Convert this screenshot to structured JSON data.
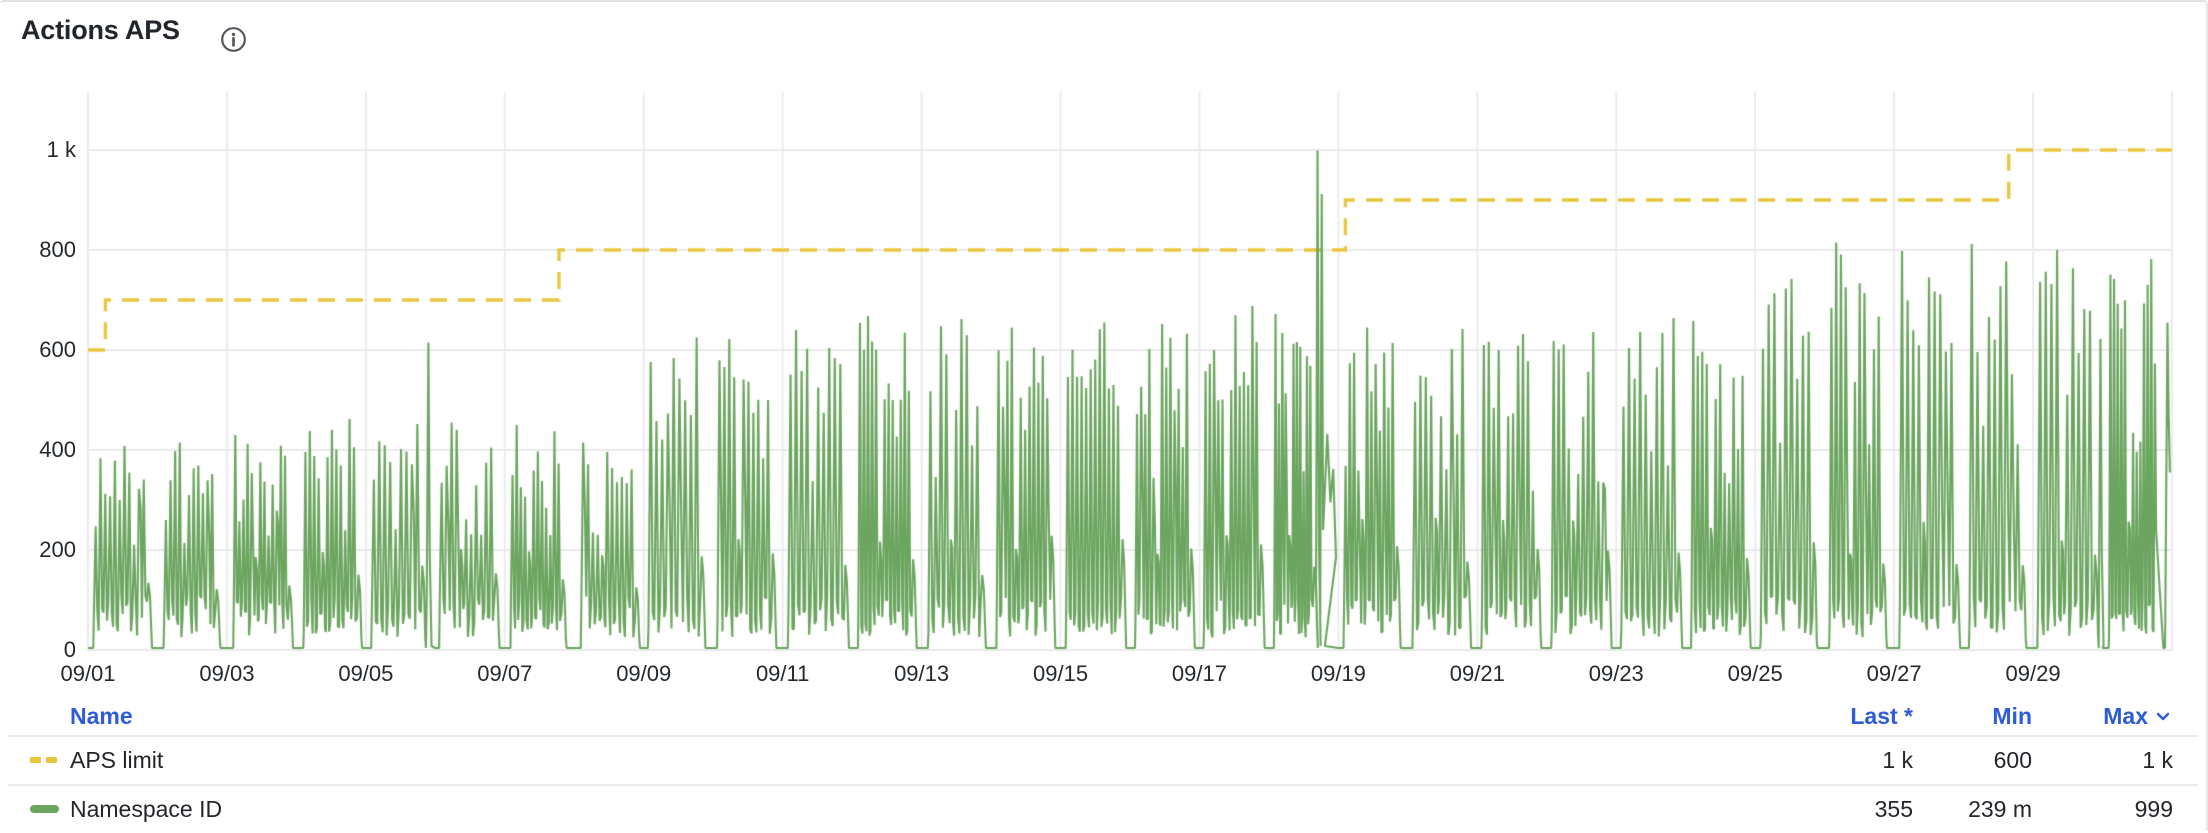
{
  "panel": {
    "title": "Actions APS",
    "info_icon": "info-circle-icon"
  },
  "colors": {
    "green": "#6ba55f",
    "yellow": "#eac63e",
    "blue": "#2e5bd8",
    "grid": "#e9eaec",
    "axis_text": "#24292e",
    "text": "#22262b"
  },
  "chart_data": {
    "type": "line",
    "title": "Actions APS",
    "grid": true,
    "legend_position": "bottom-table",
    "x_axis": {
      "unit": "date",
      "start": "09/01",
      "end": "10/01",
      "total_days": 30,
      "tick_interval_days": 2,
      "tick_labels": [
        "09/01",
        "09/03",
        "09/05",
        "09/07",
        "09/09",
        "09/11",
        "09/13",
        "09/15",
        "09/17",
        "09/19",
        "09/21",
        "09/23",
        "09/25",
        "09/27",
        "09/29"
      ]
    },
    "y_axis": {
      "min": 0,
      "max": 1050,
      "tick_values": [
        0,
        200,
        400,
        600,
        800,
        1000
      ],
      "tick_labels": [
        "0",
        "200",
        "400",
        "600",
        "800",
        "1 k"
      ]
    },
    "series": [
      {
        "name": "APS limit",
        "style": "dashed-step",
        "color": "#eac63e",
        "points": [
          {
            "t": 0,
            "value": 600
          },
          {
            "t": 0.25,
            "value": 700
          },
          {
            "t": 6.78,
            "value": 800
          },
          {
            "t": 18.1,
            "value": 900
          },
          {
            "t": 27.65,
            "value": 1000
          },
          {
            "t": 30,
            "value": 1000
          }
        ]
      },
      {
        "name": "Namespace ID",
        "style": "spiky-daily-clusters",
        "color": "#6ba55f",
        "daily_peaks": [
          408,
          415,
          430,
          462,
          452,
          455,
          450,
          415,
          625,
          622,
          640,
          668,
          662,
          645,
          655,
          652,
          688,
          672,
          645,
          642,
          632,
          636,
          664,
          658,
          742,
          815,
          798,
          812,
          800,
          782
        ],
        "special_spikes": [
          {
            "t": 4.9,
            "value": 615
          },
          {
            "t": 17.7,
            "value": 999
          },
          {
            "t": 17.76,
            "value": 912
          },
          {
            "t": 28.97,
            "value": 622
          }
        ],
        "post_spike_bumps": [
          [
            17.84,
            432
          ],
          [
            17.885,
            295
          ],
          [
            17.925,
            362
          ],
          [
            17.965,
            185
          ]
        ],
        "cluster_end_overrides": {
          "4": 4.78,
          "17": 17.62,
          "28": 28.86,
          "29": 29.78
        },
        "tail_points": [
          [
            29.875,
            4
          ],
          [
            29.9,
            4
          ],
          [
            29.935,
            655
          ],
          [
            29.952,
            470
          ],
          [
            29.97,
            355
          ]
        ],
        "pattern": {
          "base_value": 4,
          "gap_start_range": [
            0.05,
            0.1
          ],
          "cluster_end_range": [
            0.8,
            0.87
          ],
          "spikes_per_day_range": [
            9,
            12
          ],
          "valley_range": [
            25,
            110
          ],
          "mid_hump_value_range": [
            190,
            265
          ]
        },
        "last_value": 355,
        "min_value": 0.239,
        "max_value": 999
      }
    ]
  },
  "legend": {
    "columns": {
      "name": "Name",
      "last": "Last *",
      "min": "Min",
      "max": "Max"
    },
    "sort_column": "max",
    "sort_icon": "chevron-down-icon",
    "rows": [
      {
        "name": "APS limit",
        "swatch": "dashed-yellow",
        "last": "1 k",
        "min": "600",
        "max": "1 k"
      },
      {
        "name": "Namespace ID",
        "swatch": "solid-green",
        "last": "355",
        "min": "239 m",
        "max": "999"
      }
    ]
  }
}
